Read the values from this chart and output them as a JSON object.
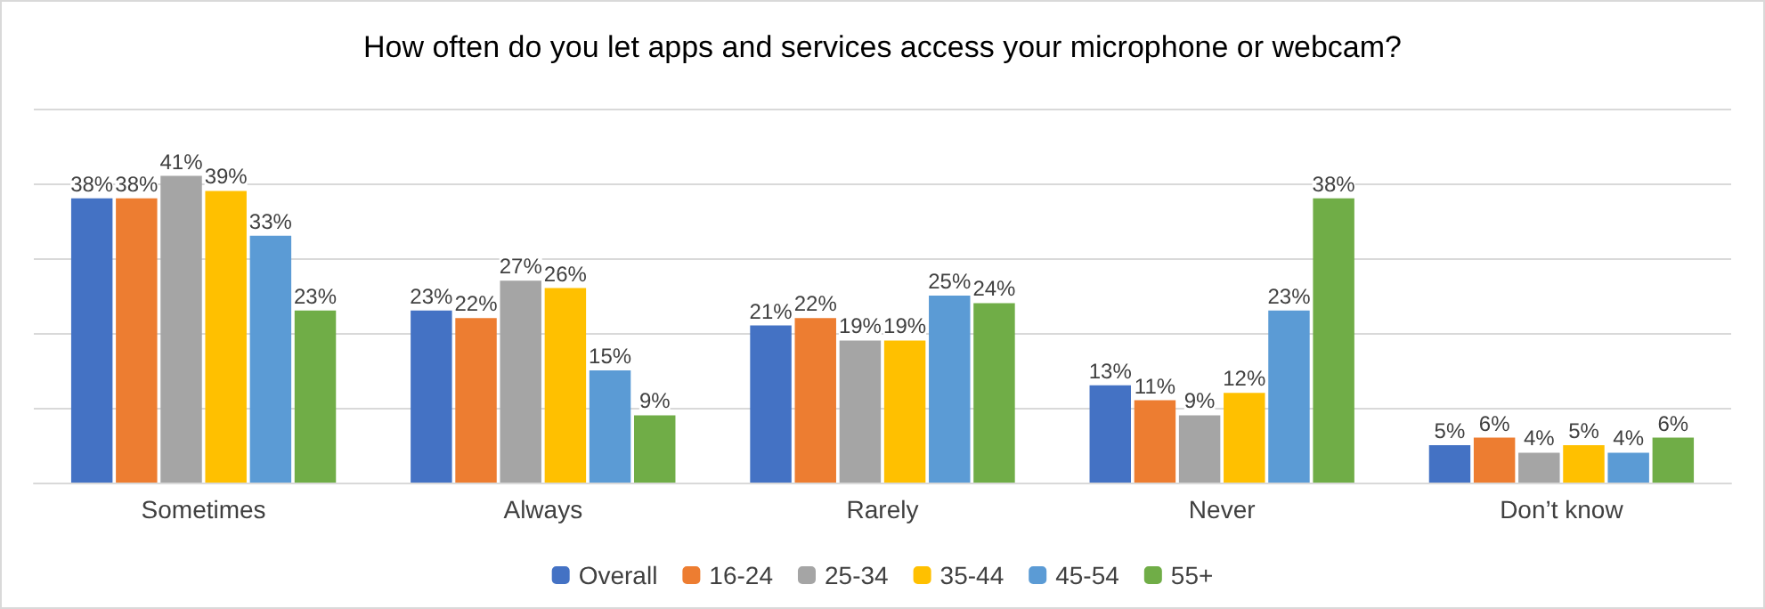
{
  "chart_data": {
    "type": "bar",
    "title": "How often do you let apps and services access your microphone or webcam?",
    "categories": [
      "Sometimes",
      "Always",
      "Rarely",
      "Never",
      "Don’t know"
    ],
    "series": [
      {
        "name": "Overall",
        "color": "#4472c4",
        "values": [
          38,
          23,
          21,
          13,
          5
        ],
        "value_labels": [
          "38%",
          "23%",
          "21%",
          "13%",
          "5%"
        ]
      },
      {
        "name": "16-24",
        "color": "#ed7d31",
        "values": [
          38,
          22,
          22,
          11,
          6
        ],
        "value_labels": [
          "38%",
          "22%",
          "22%",
          "11%",
          "6%"
        ]
      },
      {
        "name": "25-34",
        "color": "#a5a5a5",
        "values": [
          41,
          27,
          19,
          9,
          4
        ],
        "value_labels": [
          "41%",
          "27%",
          "19%",
          "9%",
          "4%"
        ]
      },
      {
        "name": "35-44",
        "color": "#ffc000",
        "values": [
          39,
          26,
          19,
          12,
          5
        ],
        "value_labels": [
          "39%",
          "26%",
          "19%",
          "12%",
          "5%"
        ]
      },
      {
        "name": "45-54",
        "color": "#5b9bd5",
        "values": [
          33,
          15,
          25,
          23,
          4
        ],
        "value_labels": [
          "33%",
          "15%",
          "25%",
          "23%",
          "4%"
        ]
      },
      {
        "name": "55+",
        "color": "#70ad47",
        "values": [
          23,
          9,
          24,
          38,
          6
        ],
        "value_labels": [
          "23%",
          "9%",
          "24%",
          "38%",
          "6%"
        ]
      }
    ],
    "tick_labels": "x",
    "grid": "y",
    "legend": "bottom"
  }
}
